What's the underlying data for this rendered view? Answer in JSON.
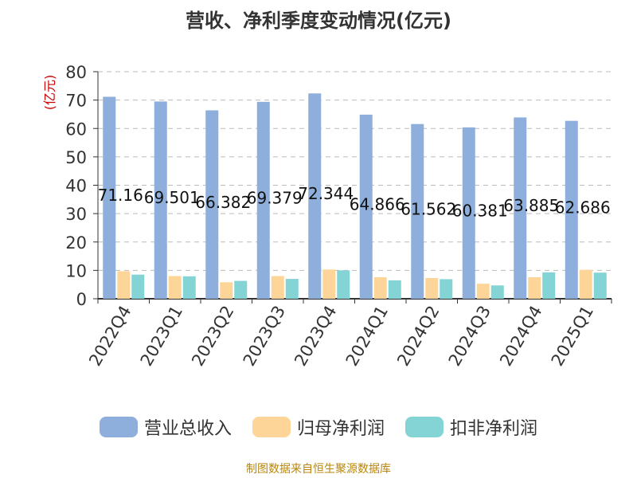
{
  "chart_data": {
    "type": "bar",
    "title": "营收、净利季度变动情况(亿元)",
    "ylabel": "(亿元)",
    "ylim": [
      0,
      80
    ],
    "yticks": [
      0,
      10,
      20,
      30,
      40,
      50,
      60,
      70,
      80
    ],
    "grid": true,
    "legend_position": "bottom",
    "categories": [
      "2022Q4",
      "2023Q1",
      "2023Q2",
      "2023Q3",
      "2023Q4",
      "2024Q1",
      "2024Q2",
      "2024Q3",
      "2024Q4",
      "2025Q1"
    ],
    "series": [
      {
        "name": "营业总收入",
        "color": "#8eaedb",
        "values": [
          71.16,
          69.501,
          66.382,
          69.379,
          72.344,
          64.866,
          61.562,
          60.381,
          63.885,
          62.686
        ],
        "labels": [
          "71.16",
          "69.501",
          "66.382",
          "69.379",
          "72.344",
          "64.866",
          "61.562",
          "60.381",
          "63.885",
          "62.686"
        ]
      },
      {
        "name": "归母净利润",
        "color": "#fdd598",
        "values": [
          9.7,
          8.0,
          5.8,
          8.0,
          10.3,
          7.6,
          7.3,
          5.3,
          7.6,
          10.2
        ]
      },
      {
        "name": "扣非净利润",
        "color": "#84d4d6",
        "values": [
          8.5,
          7.9,
          6.3,
          7.0,
          10.0,
          6.5,
          6.9,
          4.7,
          9.3,
          9.2
        ]
      }
    ]
  },
  "legend": {
    "items": [
      {
        "label": "营业总收入",
        "color": "#8eaedb"
      },
      {
        "label": "归母净利润",
        "color": "#fdd598"
      },
      {
        "label": "扣非净利润",
        "color": "#84d4d6"
      }
    ]
  },
  "source_note": "制图数据来自恒生聚源数据库"
}
